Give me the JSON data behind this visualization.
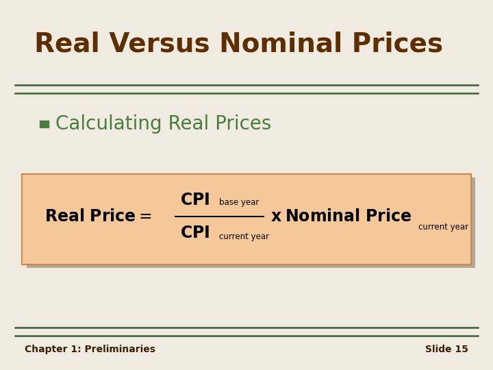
{
  "title": "Real Versus Nominal Prices",
  "title_color": "#5C2E00",
  "title_fontsize": 28,
  "bullet_text": "Calculating Real Prices",
  "bullet_color": "#4a7c3f",
  "bullet_fontsize": 20,
  "bg_color": "#f0ebe0",
  "line_color": "#3a5e3a",
  "footer_left": "Chapter 1: Preliminaries",
  "footer_right": "Slide 15",
  "footer_color": "#3a2000",
  "box_fill": "#f5c89a",
  "box_edge": "#cc8844",
  "shadow_color": "#b0a898",
  "formula_color": "#000000"
}
